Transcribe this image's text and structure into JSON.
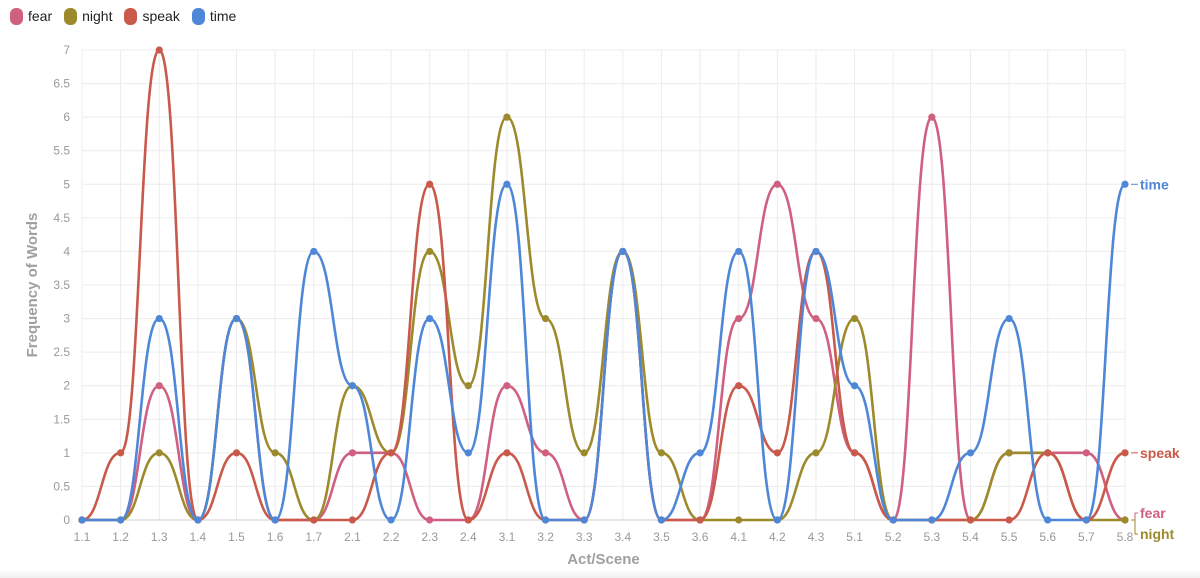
{
  "chart_data": {
    "type": "line",
    "title": "",
    "xlabel": "Act/Scene",
    "ylabel": "Frequency of Words",
    "ylim": [
      0,
      7
    ],
    "ytick_step": 0.5,
    "grid": true,
    "legend_position": "top-left",
    "categories": [
      "1.1",
      "1.2",
      "1.3",
      "1.4",
      "1.5",
      "1.6",
      "1.7",
      "2.1",
      "2.2",
      "2.3",
      "2.4",
      "3.1",
      "3.2",
      "3.3",
      "3.4",
      "3.5",
      "3.6",
      "4.1",
      "4.2",
      "4.3",
      "5.1",
      "5.2",
      "5.3",
      "5.4",
      "5.5",
      "5.6",
      "5.7",
      "5.8"
    ],
    "yticks": [
      "0",
      "0.5",
      "1",
      "1.5",
      "2",
      "2.5",
      "3",
      "3.5",
      "4",
      "4.5",
      "5",
      "5.5",
      "6",
      "6.5",
      "7"
    ],
    "series": [
      {
        "name": "fear",
        "color": "#d0607f",
        "values": [
          0,
          0,
          2,
          0,
          3,
          0,
          0,
          1,
          1,
          0,
          0,
          2,
          1,
          0,
          4,
          0,
          0,
          3,
          5,
          3,
          1,
          0,
          6,
          0,
          1,
          1,
          1,
          0
        ]
      },
      {
        "name": "night",
        "color": "#9c8a2c",
        "values": [
          0,
          0,
          1,
          0,
          3,
          1,
          0,
          2,
          1,
          4,
          2,
          6,
          3,
          1,
          4,
          1,
          0,
          0,
          0,
          1,
          3,
          0,
          0,
          0,
          1,
          1,
          0,
          0
        ]
      },
      {
        "name": "speak",
        "color": "#c9594a",
        "values": [
          0,
          1,
          7,
          0,
          1,
          0,
          0,
          0,
          1,
          5,
          0,
          1,
          0,
          0,
          4,
          0,
          0,
          2,
          1,
          4,
          1,
          0,
          0,
          0,
          0,
          1,
          0,
          1
        ]
      },
      {
        "name": "time",
        "color": "#4f87d8",
        "values": [
          0,
          0,
          3,
          0,
          3,
          0,
          4,
          2,
          0,
          3,
          1,
          5,
          0,
          0,
          4,
          0,
          1,
          4,
          0,
          4,
          2,
          0,
          0,
          1,
          3,
          0,
          0,
          5
        ]
      }
    ],
    "legend": [
      {
        "name": "fear",
        "color": "#d0607f"
      },
      {
        "name": "night",
        "color": "#9c8a2c"
      },
      {
        "name": "speak",
        "color": "#c9594a"
      },
      {
        "name": "time",
        "color": "#4f87d8"
      }
    ]
  }
}
